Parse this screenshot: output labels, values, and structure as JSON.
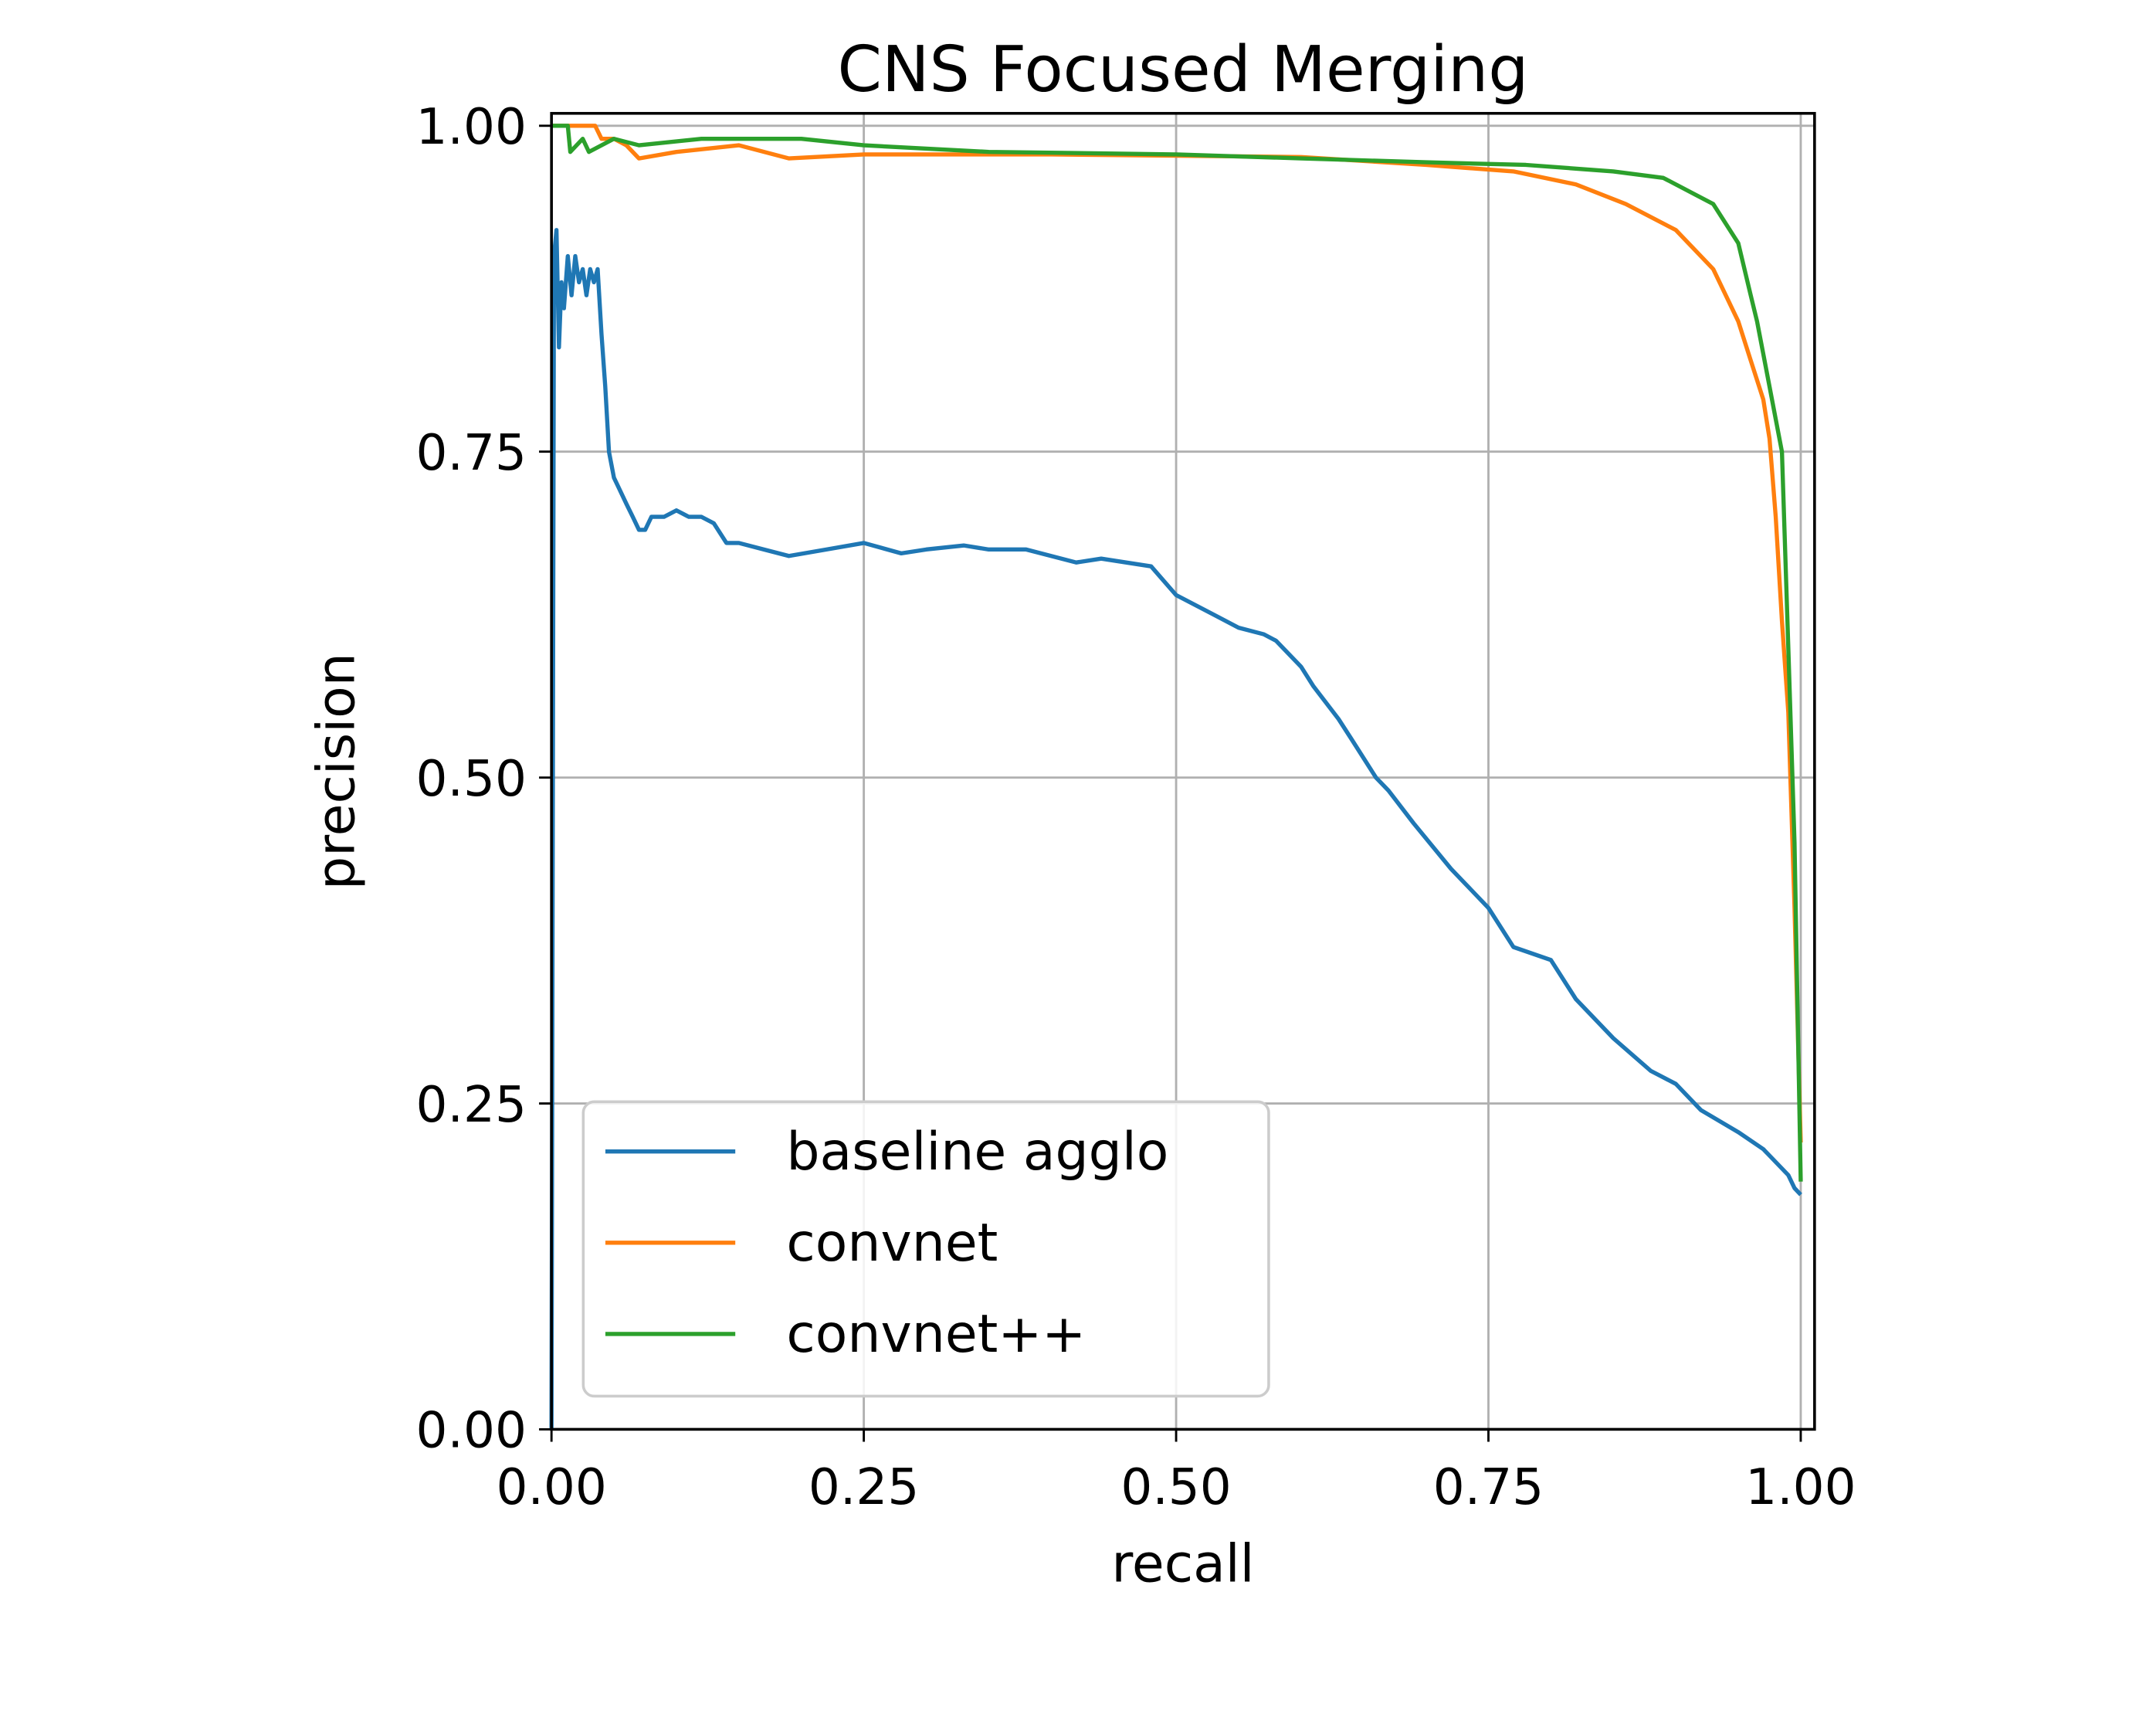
{
  "chart_data": {
    "type": "line",
    "title": "CNS Focused Merging",
    "xlabel": "recall",
    "ylabel": "precision",
    "xlim": [
      0,
      1.01
    ],
    "ylim": [
      0,
      1.01
    ],
    "xticks": [
      0,
      0.25,
      0.5,
      0.75,
      1.0
    ],
    "xtick_labels": [
      "0.00",
      "0.25",
      "0.50",
      "0.75",
      "1.00"
    ],
    "yticks": [
      0,
      0.25,
      0.5,
      0.75,
      1.0
    ],
    "ytick_labels": [
      "0.00",
      "0.25",
      "0.50",
      "0.75",
      "1.00"
    ],
    "grid": true,
    "legend_position": "bottom-left",
    "series": [
      {
        "name": "baseline agglo",
        "color": "#1f77b4",
        "x": [
          0,
          0.002,
          0.004,
          0.006,
          0.008,
          0.01,
          0.013,
          0.016,
          0.019,
          0.022,
          0.025,
          0.028,
          0.031,
          0.034,
          0.037,
          0.04,
          0.043,
          0.046,
          0.05,
          0.055,
          0.06,
          0.065,
          0.07,
          0.075,
          0.08,
          0.09,
          0.1,
          0.11,
          0.12,
          0.13,
          0.14,
          0.15,
          0.17,
          0.19,
          0.22,
          0.25,
          0.28,
          0.3,
          0.33,
          0.35,
          0.38,
          0.42,
          0.44,
          0.46,
          0.48,
          0.5,
          0.53,
          0.55,
          0.57,
          0.58,
          0.6,
          0.61,
          0.63,
          0.64,
          0.66,
          0.67,
          0.69,
          0.72,
          0.74,
          0.75,
          0.77,
          0.8,
          0.82,
          0.85,
          0.88,
          0.9,
          0.92,
          0.95,
          0.97,
          0.99,
          0.995,
          1.0
        ],
        "y": [
          0,
          0.9,
          0.92,
          0.83,
          0.88,
          0.86,
          0.9,
          0.87,
          0.9,
          0.88,
          0.89,
          0.87,
          0.89,
          0.88,
          0.89,
          0.84,
          0.8,
          0.75,
          0.73,
          0.72,
          0.71,
          0.7,
          0.69,
          0.69,
          0.7,
          0.7,
          0.705,
          0.7,
          0.7,
          0.695,
          0.68,
          0.68,
          0.675,
          0.67,
          0.675,
          0.68,
          0.672,
          0.675,
          0.678,
          0.675,
          0.675,
          0.665,
          0.668,
          0.665,
          0.662,
          0.64,
          0.625,
          0.615,
          0.61,
          0.605,
          0.585,
          0.57,
          0.545,
          0.53,
          0.5,
          0.49,
          0.465,
          0.43,
          0.41,
          0.4,
          0.37,
          0.36,
          0.33,
          0.3,
          0.275,
          0.265,
          0.245,
          0.228,
          0.215,
          0.195,
          0.185,
          0.18
        ]
      },
      {
        "name": "convnet",
        "color": "#ff7f0e",
        "x": [
          0,
          0.035,
          0.04,
          0.05,
          0.06,
          0.07,
          0.1,
          0.15,
          0.19,
          0.25,
          0.4,
          0.6,
          0.7,
          0.77,
          0.82,
          0.86,
          0.9,
          0.93,
          0.95,
          0.96,
          0.97,
          0.975,
          0.98,
          0.985,
          0.99,
          0.995,
          1.0
        ],
        "y": [
          1.0,
          1.0,
          0.99,
          0.99,
          0.985,
          0.975,
          0.98,
          0.985,
          0.975,
          0.978,
          0.978,
          0.976,
          0.97,
          0.965,
          0.955,
          0.94,
          0.92,
          0.89,
          0.85,
          0.82,
          0.79,
          0.76,
          0.7,
          0.62,
          0.55,
          0.4,
          0.22
        ]
      },
      {
        "name": "convnet++",
        "color": "#2ca02c",
        "x": [
          0,
          0.013,
          0.015,
          0.025,
          0.03,
          0.05,
          0.07,
          0.12,
          0.2,
          0.25,
          0.35,
          0.5,
          0.6,
          0.7,
          0.78,
          0.85,
          0.89,
          0.93,
          0.95,
          0.96,
          0.965,
          0.975,
          0.985,
          0.99,
          0.995,
          1.0
        ],
        "y": [
          1.0,
          1.0,
          0.98,
          0.99,
          0.98,
          0.99,
          0.985,
          0.99,
          0.99,
          0.985,
          0.98,
          0.978,
          0.975,
          0.972,
          0.97,
          0.965,
          0.96,
          0.94,
          0.91,
          0.87,
          0.85,
          0.8,
          0.75,
          0.6,
          0.45,
          0.19
        ]
      }
    ]
  }
}
